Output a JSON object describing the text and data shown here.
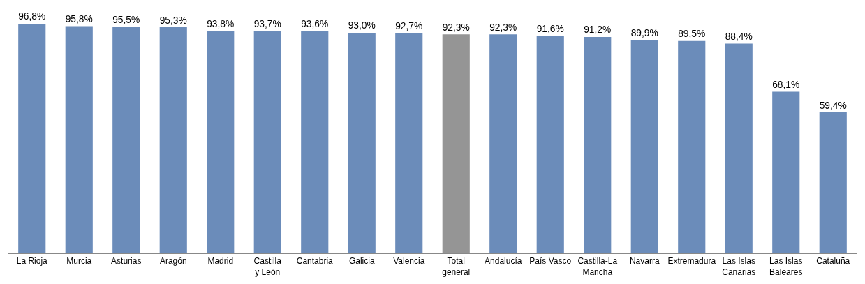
{
  "chart_data": {
    "type": "bar",
    "categories": [
      "La Rioja",
      "Murcia",
      "Asturias",
      "Aragón",
      "Madrid",
      "Castilla\ny León",
      "Cantabria",
      "Galicia",
      "Valencia",
      "Total\ngeneral",
      "Andalucía",
      "País Vasco",
      "Castilla-La\nMancha",
      "Navarra",
      "Extremadura",
      "Las Islas\nCanarias",
      "Las Islas\nBaleares",
      "Cataluña"
    ],
    "values": [
      96.8,
      95.8,
      95.5,
      95.3,
      93.8,
      93.7,
      93.6,
      93.0,
      92.7,
      92.3,
      92.3,
      91.6,
      91.2,
      89.9,
      89.5,
      88.4,
      68.1,
      59.4
    ],
    "value_labels": [
      "96,8%",
      "95,8%",
      "95,5%",
      "95,3%",
      "93,8%",
      "93,7%",
      "93,6%",
      "93,0%",
      "92,7%",
      "92,3%",
      "92,3%",
      "91,6%",
      "91,2%",
      "89,9%",
      "89,5%",
      "88,4%",
      "68,1%",
      "59,4%"
    ],
    "colors": [
      "#6b8cba",
      "#6b8cba",
      "#6b8cba",
      "#6b8cba",
      "#6b8cba",
      "#6b8cba",
      "#6b8cba",
      "#6b8cba",
      "#6b8cba",
      "#959595",
      "#6b8cba",
      "#6b8cba",
      "#6b8cba",
      "#6b8cba",
      "#6b8cba",
      "#6b8cba",
      "#6b8cba",
      "#6b8cba"
    ],
    "ylim": [
      0,
      96.8
    ]
  }
}
